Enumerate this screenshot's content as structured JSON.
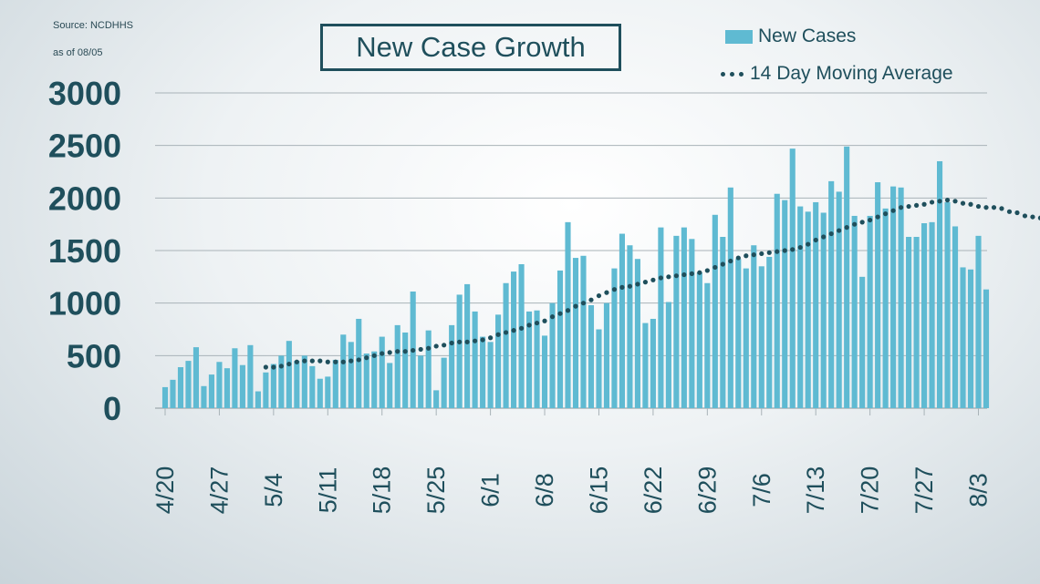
{
  "source_line1": "Source:  NCDHHS",
  "source_line2": "as of 08/05",
  "colors": {
    "bar": "#5fbad2",
    "line": "#1f4f5c",
    "text": "#1f4f5c",
    "grid": "#a9b3b8"
  },
  "chart_data": {
    "type": "bar",
    "title": "New Case Growth",
    "xlabel": "",
    "ylabel": "",
    "ylim": [
      0,
      3000
    ],
    "yticks": [
      0,
      500,
      1000,
      1500,
      2000,
      2500,
      3000
    ],
    "grid": true,
    "legend_placement": "top-right",
    "xtick_labels": [
      "4/20",
      "4/27",
      "5/4",
      "5/11",
      "5/18",
      "5/25",
      "6/1",
      "6/8",
      "6/15",
      "6/22",
      "6/29",
      "7/6",
      "7/13",
      "7/20",
      "7/27",
      "8/3"
    ],
    "x_start": "4/20",
    "series": [
      {
        "name": "New Cases",
        "kind": "bar",
        "values": [
          200,
          270,
          390,
          450,
          580,
          210,
          320,
          440,
          380,
          570,
          410,
          600,
          160,
          340,
          420,
          500,
          640,
          450,
          500,
          400,
          280,
          300,
          460,
          700,
          630,
          850,
          520,
          540,
          680,
          430,
          790,
          720,
          1110,
          500,
          740,
          170,
          480,
          790,
          1080,
          1180,
          920,
          680,
          630,
          890,
          1190,
          1300,
          1370,
          920,
          930,
          690,
          1000,
          1310,
          1770,
          1430,
          1450,
          980,
          750,
          1000,
          1330,
          1660,
          1550,
          1420,
          810,
          850,
          1720,
          1010,
          1640,
          1720,
          1610,
          1290,
          1190,
          1840,
          1630,
          2100,
          1420,
          1330,
          1550,
          1350,
          1440,
          2040,
          1980,
          2470,
          1920,
          1870,
          1960,
          1860,
          2160,
          2060,
          2490,
          1830,
          1250,
          1830,
          2150,
          1900,
          2110,
          2100,
          1630,
          1630,
          1760,
          1770,
          2350,
          1960,
          1730,
          1340,
          1320,
          1640,
          1130
        ]
      },
      {
        "name": "14 Day Moving Average",
        "kind": "dotted-line",
        "start_index": 13,
        "values": [
          390,
          390,
          400,
          420,
          440,
          450,
          450,
          450,
          440,
          440,
          440,
          450,
          460,
          480,
          500,
          520,
          530,
          540,
          540,
          550,
          560,
          570,
          590,
          600,
          620,
          630,
          630,
          640,
          650,
          670,
          700,
          720,
          740,
          760,
          790,
          810,
          830,
          870,
          900,
          930,
          970,
          1000,
          1030,
          1070,
          1100,
          1130,
          1150,
          1160,
          1180,
          1200,
          1220,
          1240,
          1250,
          1260,
          1270,
          1280,
          1290,
          1310,
          1340,
          1370,
          1400,
          1430,
          1450,
          1460,
          1470,
          1480,
          1490,
          1500,
          1510,
          1530,
          1560,
          1600,
          1630,
          1660,
          1690,
          1720,
          1750,
          1770,
          1790,
          1820,
          1850,
          1880,
          1910,
          1920,
          1930,
          1940,
          1960,
          1970,
          1980,
          1970,
          1950,
          1940,
          1920,
          1910,
          1910,
          1900,
          1870,
          1860,
          1830,
          1820,
          1810,
          1760
        ]
      }
    ]
  }
}
